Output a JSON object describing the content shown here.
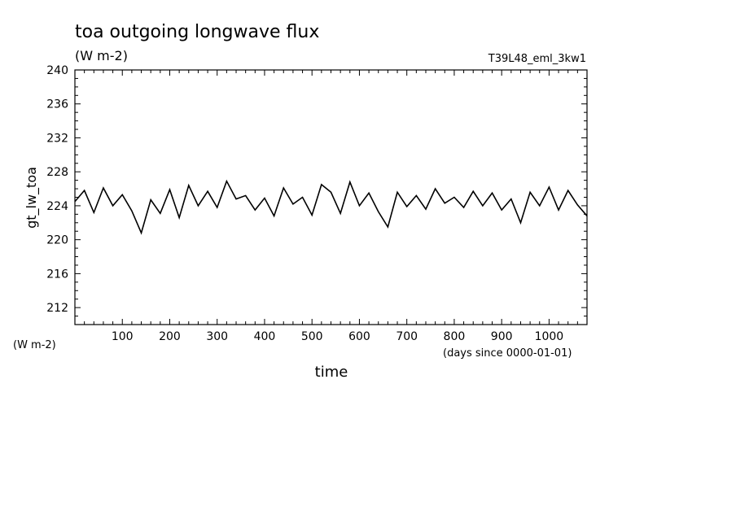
{
  "chart_data": {
    "type": "line",
    "title": "toa outgoing longwave flux",
    "subtitle": "(W m-2)",
    "run_label": "T39L48_eml_3kw1",
    "ylabel": "gt_lw_toa",
    "ylabel_unit": "(W m-2)",
    "xlabel": "time",
    "xlabel_unit": "(days since 0000-01-01)",
    "xlim": [
      0,
      1080
    ],
    "ylim": [
      210,
      240
    ],
    "xticks": [
      "100",
      "200",
      "300",
      "400",
      "500",
      "600",
      "700",
      "800",
      "900",
      "1000"
    ],
    "yticks": [
      "212",
      "216",
      "220",
      "224",
      "228",
      "232",
      "236",
      "240"
    ],
    "line_color": "#000000",
    "grid": false,
    "series": [
      {
        "x": [
          0,
          20,
          40,
          60,
          80,
          100,
          120,
          140,
          160,
          180,
          200,
          220,
          240,
          260,
          280,
          300,
          320,
          340,
          360,
          380,
          400,
          420,
          440,
          460,
          480,
          500,
          520,
          540,
          560,
          580,
          600,
          620,
          640,
          660,
          680,
          700,
          720,
          740,
          760,
          780,
          800,
          820,
          840,
          860,
          880,
          900,
          920,
          940,
          960,
          980,
          1000,
          1020,
          1040,
          1060,
          1080
        ],
        "y": [
          224.5,
          225.8,
          223.2,
          226.1,
          224.0,
          225.3,
          223.4,
          220.8,
          224.7,
          223.1,
          225.9,
          222.6,
          226.4,
          224.0,
          225.7,
          223.8,
          226.9,
          224.8,
          225.2,
          223.5,
          224.9,
          222.8,
          226.1,
          224.2,
          225.0,
          222.9,
          226.5,
          225.6,
          223.1,
          226.8,
          224.0,
          225.5,
          223.3,
          221.5,
          225.6,
          223.9,
          225.2,
          223.6,
          226.0,
          224.3,
          225.0,
          223.8,
          225.7,
          224.0,
          225.5,
          223.5,
          224.8,
          222.0,
          225.6,
          224.0,
          226.2,
          223.5,
          225.8,
          224.1,
          222.8
        ]
      }
    ]
  }
}
